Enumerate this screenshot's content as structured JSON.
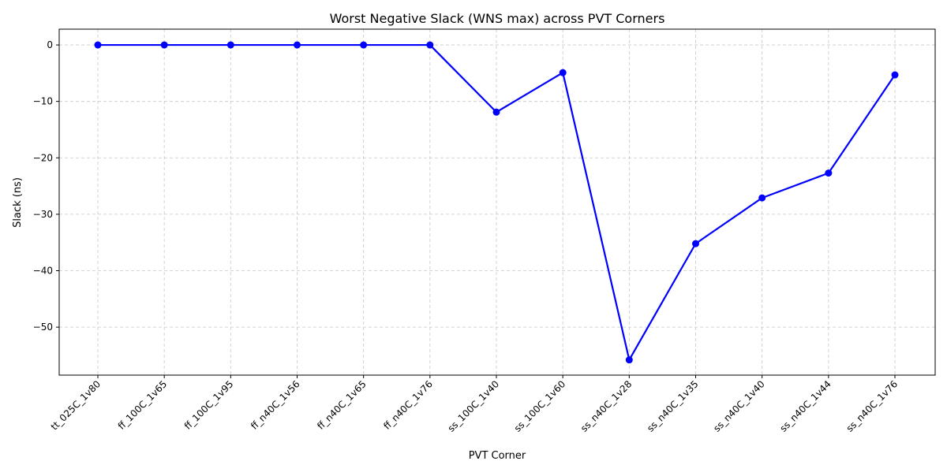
{
  "chart_data": {
    "type": "line",
    "title": "Worst Negative Slack (WNS max) across PVT Corners",
    "xlabel": "PVT Corner",
    "ylabel": "Slack (ns)",
    "categories": [
      "tt_025C_1v80",
      "ff_100C_1v65",
      "ff_100C_1v95",
      "ff_n40C_1v56",
      "ff_n40C_1v65",
      "ff_n40C_1v76",
      "ss_100C_1v40",
      "ss_100C_1v60",
      "ss_n40C_1v28",
      "ss_n40C_1v35",
      "ss_n40C_1v40",
      "ss_n40C_1v44",
      "ss_n40C_1v76"
    ],
    "series": [
      {
        "values": [
          0,
          0,
          0,
          0,
          0,
          0,
          -11.9,
          -4.9,
          -55.8,
          -35.2,
          -27.1,
          -22.7,
          -5.3
        ]
      }
    ],
    "yticks": [
      0,
      -10,
      -20,
      -30,
      -40,
      -50
    ],
    "ylim": [
      -58.5,
      2.8
    ],
    "grid": true,
    "legend": "none",
    "colors": {
      "line": "#0000ff",
      "grid": "#b0b0b0",
      "axis": "#000000"
    }
  }
}
